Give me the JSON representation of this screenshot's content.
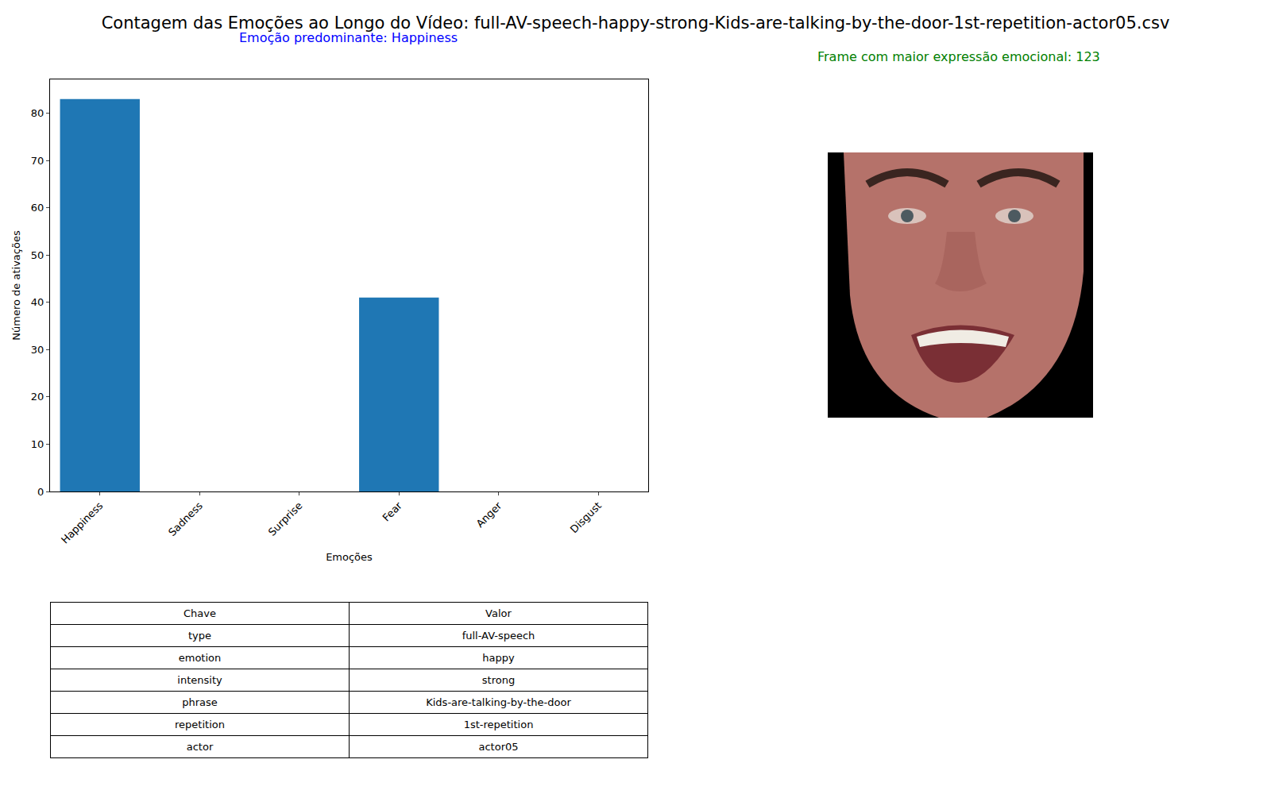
{
  "chart_data": {
    "type": "bar",
    "title": "Contagem das Emoções ao Longo do Vídeo: full-AV-speech-happy-strong-Kids-are-talking-by-the-door-1st-repetition-actor05.csv",
    "subtitle": "Emoção predominante: Happiness",
    "annotations": [
      "Frame com maior expressão emocional: 123"
    ],
    "x_label": "Emoções",
    "y_label": "Número de ativações",
    "categories": [
      "Happiness",
      "Sadness",
      "Surprise",
      "Fear",
      "Anger",
      "Disgust"
    ],
    "values": [
      83,
      0,
      0,
      41,
      0,
      0
    ],
    "color": "#1f77b4",
    "ylim": [
      0,
      87.15
    ],
    "yticks": [
      0,
      10,
      20,
      30,
      40,
      50,
      60,
      70,
      80
    ],
    "grid": false
  },
  "table": {
    "header": [
      "Chave",
      "Valor"
    ],
    "rows": [
      [
        "type",
        "full-AV-speech"
      ],
      [
        "emotion",
        "happy"
      ],
      [
        "intensity",
        "strong"
      ],
      [
        "phrase",
        "Kids-are-talking-by-the-door"
      ],
      [
        "repetition",
        "1st-repetition"
      ],
      [
        "actor",
        "actor05"
      ]
    ]
  }
}
